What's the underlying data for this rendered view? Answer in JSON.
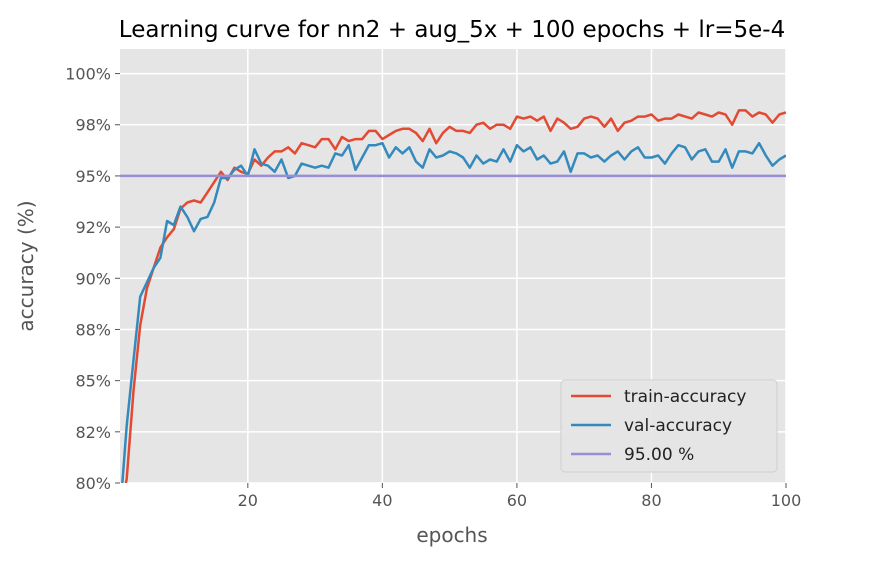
{
  "chart_data": {
    "type": "line",
    "title": "Learning curve for nn2 + aug_5x + 100 epochs + lr=5e-4",
    "xlabel": "epochs",
    "ylabel": "accuracy (%)",
    "xlim": [
      1,
      100
    ],
    "ylim": [
      80,
      101.2
    ],
    "x_ticks": [
      20,
      40,
      60,
      80,
      100
    ],
    "x_tick_labels": [
      "20",
      "40",
      "60",
      "80",
      "100"
    ],
    "y_ticks": [
      80,
      82.5,
      85,
      87.5,
      90,
      92.5,
      95,
      97.5,
      100
    ],
    "y_tick_labels": [
      "80%",
      "82%",
      "85%",
      "88%",
      "90%",
      "92%",
      "95%",
      "98%",
      "100%"
    ],
    "grid": true,
    "legend_position": "lower-right",
    "series": [
      {
        "name": "train-accuracy",
        "color": "#E24A33",
        "x": [
          1,
          2,
          3,
          4,
          5,
          6,
          7,
          8,
          9,
          10,
          11,
          12,
          13,
          14,
          15,
          16,
          17,
          18,
          19,
          20,
          21,
          22,
          23,
          24,
          25,
          26,
          27,
          28,
          29,
          30,
          31,
          32,
          33,
          34,
          35,
          36,
          37,
          38,
          39,
          40,
          41,
          42,
          43,
          44,
          45,
          46,
          47,
          48,
          49,
          50,
          51,
          52,
          53,
          54,
          55,
          56,
          57,
          58,
          59,
          60,
          61,
          62,
          63,
          64,
          65,
          66,
          67,
          68,
          69,
          70,
          71,
          72,
          73,
          74,
          75,
          76,
          77,
          78,
          79,
          80,
          81,
          82,
          83,
          84,
          85,
          86,
          87,
          88,
          89,
          90,
          91,
          92,
          93,
          94,
          95,
          96,
          97,
          98,
          99,
          100
        ],
        "y": [
          78.5,
          80.2,
          84.5,
          87.7,
          89.5,
          90.5,
          91.5,
          92.0,
          92.4,
          93.4,
          93.7,
          93.8,
          93.7,
          94.2,
          94.7,
          95.2,
          94.8,
          95.4,
          95.2,
          95.1,
          95.8,
          95.5,
          95.9,
          96.2,
          96.2,
          96.4,
          96.1,
          96.6,
          96.5,
          96.4,
          96.8,
          96.8,
          96.3,
          96.9,
          96.7,
          96.8,
          96.8,
          97.2,
          97.2,
          96.8,
          97.0,
          97.2,
          97.3,
          97.3,
          97.1,
          96.7,
          97.3,
          96.6,
          97.1,
          97.4,
          97.2,
          97.2,
          97.1,
          97.5,
          97.6,
          97.3,
          97.5,
          97.5,
          97.3,
          97.9,
          97.8,
          97.9,
          97.7,
          97.9,
          97.2,
          97.8,
          97.6,
          97.3,
          97.4,
          97.8,
          97.9,
          97.8,
          97.4,
          97.8,
          97.2,
          97.6,
          97.7,
          97.9,
          97.9,
          98.0,
          97.7,
          97.8,
          97.8,
          98.0,
          97.9,
          97.8,
          98.1,
          98.0,
          97.9,
          98.1,
          98.0,
          97.5,
          98.2,
          98.2,
          97.9,
          98.1,
          98.0,
          97.6,
          98.0,
          98.1
        ]
      },
      {
        "name": "val-accuracy",
        "color": "#348ABD",
        "x": [
          1,
          2,
          3,
          4,
          5,
          6,
          7,
          8,
          9,
          10,
          11,
          12,
          13,
          14,
          15,
          16,
          17,
          18,
          19,
          20,
          21,
          22,
          23,
          24,
          25,
          26,
          27,
          28,
          29,
          30,
          31,
          32,
          33,
          34,
          35,
          36,
          37,
          38,
          39,
          40,
          41,
          42,
          43,
          44,
          45,
          46,
          47,
          48,
          49,
          50,
          51,
          52,
          53,
          54,
          55,
          56,
          57,
          58,
          59,
          60,
          61,
          62,
          63,
          64,
          65,
          66,
          67,
          68,
          69,
          70,
          71,
          72,
          73,
          74,
          75,
          76,
          77,
          78,
          79,
          80,
          81,
          82,
          83,
          84,
          85,
          86,
          87,
          88,
          89,
          90,
          91,
          92,
          93,
          94,
          95,
          96,
          97,
          98,
          99,
          100
        ],
        "y": [
          78.5,
          82.8,
          86.0,
          89.1,
          89.8,
          90.5,
          91.0,
          92.8,
          92.6,
          93.5,
          93.0,
          92.3,
          92.9,
          93.0,
          93.7,
          94.9,
          94.9,
          95.3,
          95.5,
          95.0,
          96.3,
          95.6,
          95.5,
          95.2,
          95.8,
          94.9,
          95.0,
          95.6,
          95.5,
          95.4,
          95.5,
          95.4,
          96.1,
          96.0,
          96.5,
          95.3,
          95.9,
          96.5,
          96.5,
          96.6,
          95.9,
          96.4,
          96.1,
          96.4,
          95.7,
          95.4,
          96.3,
          95.9,
          96.0,
          96.2,
          96.1,
          95.9,
          95.4,
          96.0,
          95.6,
          95.8,
          95.7,
          96.3,
          95.7,
          96.5,
          96.2,
          96.4,
          95.8,
          96.0,
          95.6,
          95.7,
          96.2,
          95.2,
          96.1,
          96.1,
          95.9,
          96.0,
          95.7,
          96.0,
          96.2,
          95.8,
          96.2,
          96.4,
          95.9,
          95.9,
          96.0,
          95.6,
          96.1,
          96.5,
          96.4,
          95.8,
          96.2,
          96.3,
          95.7,
          95.7,
          96.3,
          95.4,
          96.2,
          96.2,
          96.1,
          96.6,
          96.0,
          95.5,
          95.8,
          96.0
        ]
      },
      {
        "name": "95.00 %",
        "color": "#988ED5",
        "x": [
          1,
          100
        ],
        "y": [
          95,
          95
        ]
      }
    ]
  }
}
